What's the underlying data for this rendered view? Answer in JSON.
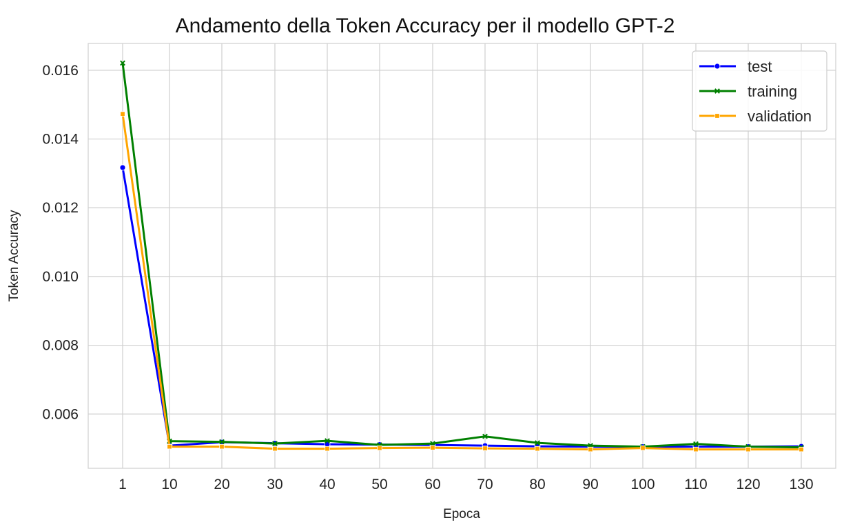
{
  "chart_data": {
    "type": "line",
    "title": "Andamento della Token Accuracy per il modello GPT-2",
    "xlabel": "Epoca",
    "ylabel": "Token Accuracy",
    "x": [
      1,
      10,
      20,
      30,
      40,
      50,
      60,
      70,
      80,
      90,
      100,
      110,
      120,
      130
    ],
    "x_tick_labels": [
      "1",
      "10",
      "20",
      "30",
      "40",
      "50",
      "60",
      "70",
      "80",
      "90",
      "100",
      "110",
      "120",
      "130"
    ],
    "y_ticks": [
      0.006,
      0.008,
      0.01,
      0.012,
      0.014,
      0.016
    ],
    "y_tick_labels": [
      "0.006",
      "0.008",
      "0.010",
      "0.012",
      "0.014",
      "0.016"
    ],
    "ylim": [
      0.00442,
      0.01678
    ],
    "grid": true,
    "legend_position": "top-right",
    "series": [
      {
        "name": "test",
        "color": "#0000ff",
        "marker": "circle",
        "values": [
          0.01317,
          0.00508,
          0.00518,
          0.00515,
          0.00512,
          0.00511,
          0.0051,
          0.00508,
          0.00506,
          0.00505,
          0.00505,
          0.00505,
          0.00505,
          0.00506
        ]
      },
      {
        "name": "training",
        "color": "#008000",
        "marker": "x",
        "values": [
          0.01621,
          0.00521,
          0.00519,
          0.00514,
          0.00522,
          0.0051,
          0.00514,
          0.00535,
          0.00516,
          0.00508,
          0.00505,
          0.00513,
          0.00505,
          0.00503
        ]
      },
      {
        "name": "validation",
        "color": "#ffa500",
        "marker": "square",
        "values": [
          0.01473,
          0.00505,
          0.00505,
          0.00499,
          0.00499,
          0.00501,
          0.00502,
          0.005,
          0.00499,
          0.00497,
          0.00501,
          0.00497,
          0.00497,
          0.00497
        ]
      }
    ]
  }
}
